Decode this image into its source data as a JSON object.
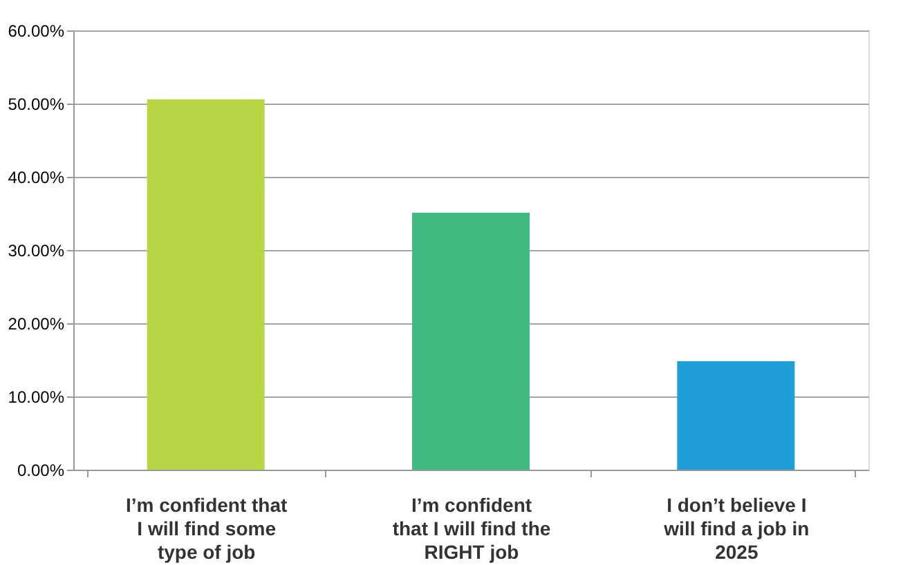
{
  "chart_data": {
    "type": "bar",
    "categories": [
      "I’m confident that\nI will find some\ntype of job",
      "I’m confident\nthat I will find the\nRIGHT job",
      "I don’t believe I\nwill find a job in\n2025"
    ],
    "values": [
      50.6,
      35.1,
      14.8
    ],
    "colors": [
      "#b8d546",
      "#41ba82",
      "#1e9fd9"
    ],
    "ylim": [
      0,
      60
    ],
    "yticks": [
      {
        "value": 0,
        "label": "0.00%"
      },
      {
        "value": 10,
        "label": "10.00%"
      },
      {
        "value": 20,
        "label": "20.00%"
      },
      {
        "value": 30,
        "label": "30.00%"
      },
      {
        "value": 40,
        "label": "40.00%"
      },
      {
        "value": 50,
        "label": "50.00%"
      },
      {
        "value": 60,
        "label": "60.00%"
      }
    ],
    "grid": "y"
  }
}
